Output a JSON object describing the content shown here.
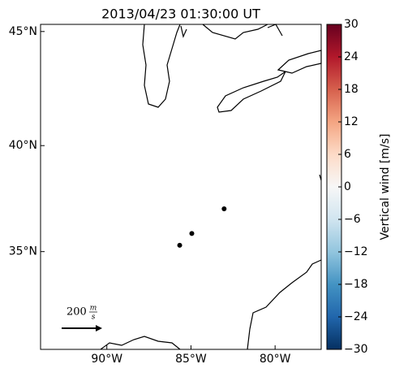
{
  "chart_data": {
    "type": "scatter",
    "title": "2013/04/23 01:30:00 UT",
    "projection": "mercator",
    "xlim": [
      -93.94,
      -77.26
    ],
    "ylim": [
      30.1,
      45.3
    ],
    "xticks": [
      {
        "value": -90,
        "label": "90°W"
      },
      {
        "value": -85,
        "label": "85°W"
      },
      {
        "value": -80,
        "label": "80°W"
      }
    ],
    "yticks": [
      {
        "value": 35,
        "label": "35°N"
      },
      {
        "value": 40,
        "label": "40°N"
      },
      {
        "value": 45,
        "label": "45°N"
      }
    ],
    "series": [
      {
        "color": "#000000",
        "x": [
          -84.95,
          -85.67,
          -83.03
        ],
        "values": [
          35.88,
          35.31,
          37.06
        ]
      }
    ],
    "quiver_key": {
      "value": "200",
      "unit_top": "m",
      "unit_bottom": "s"
    },
    "colorbar": {
      "label": "Vertical wind [m/s]",
      "lim": [
        -30,
        30
      ],
      "ticks": [
        {
          "value": -30,
          "label": "−30"
        },
        {
          "value": -24,
          "label": "−24"
        },
        {
          "value": -18,
          "label": "−18"
        },
        {
          "value": -12,
          "label": "−12"
        },
        {
          "value": -6,
          "label": "−6"
        },
        0,
        6,
        12,
        18,
        24,
        30
      ],
      "colormap": [
        "#053061",
        "#2166ac",
        "#4393c3",
        "#92c5de",
        "#d1e5f0",
        "#f7f7f7",
        "#fddbc7",
        "#f4a582",
        "#d6604d",
        "#b2182b",
        "#67001f"
      ]
    }
  }
}
